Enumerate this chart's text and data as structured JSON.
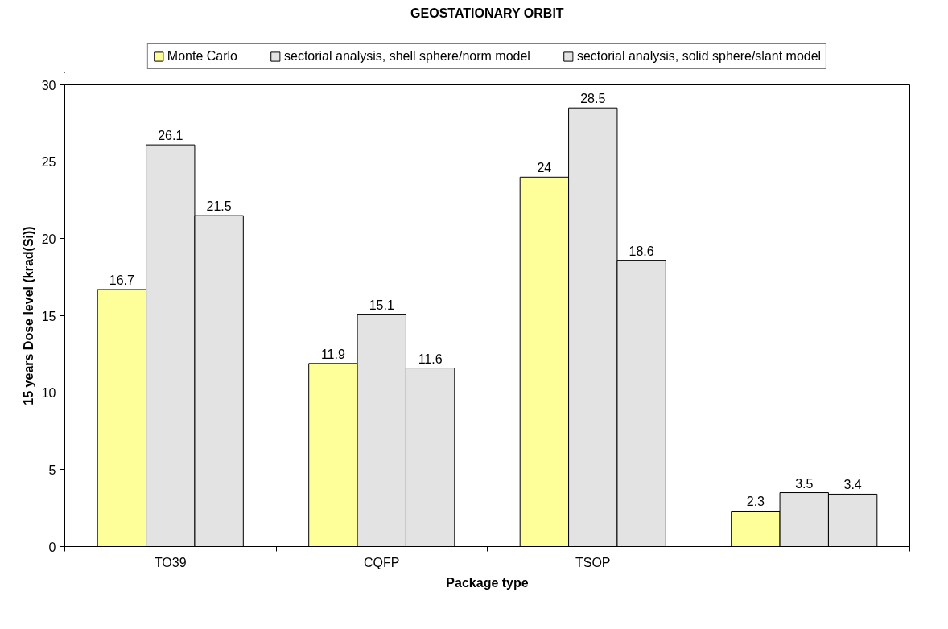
{
  "chart_data": {
    "type": "bar",
    "title": "GEOSTATIONARY ORBIT",
    "xlabel": "Package type",
    "ylabel": "15 years Dose level (krad(Si))",
    "categories": [
      "TO39",
      "CQFP",
      "TSOP",
      null
    ],
    "series": [
      {
        "name": "Monte Carlo",
        "color": "#ffff99",
        "values": [
          16.7,
          11.9,
          24,
          2.3
        ]
      },
      {
        "name": "sectorial analysis, shell sphere/norm model",
        "color": "#e3e3e3",
        "values": [
          26.1,
          15.1,
          28.5,
          3.5
        ]
      },
      {
        "name": "sectorial analysis, solid sphere/slant model",
        "color": "#e3e3e3",
        "values": [
          21.5,
          11.6,
          18.6,
          3.4
        ]
      }
    ],
    "ylim": [
      0,
      30
    ],
    "yticks": [
      0,
      5,
      10,
      15,
      20,
      25,
      30
    ],
    "grid": false,
    "legend": "top",
    "data_labels": true
  }
}
